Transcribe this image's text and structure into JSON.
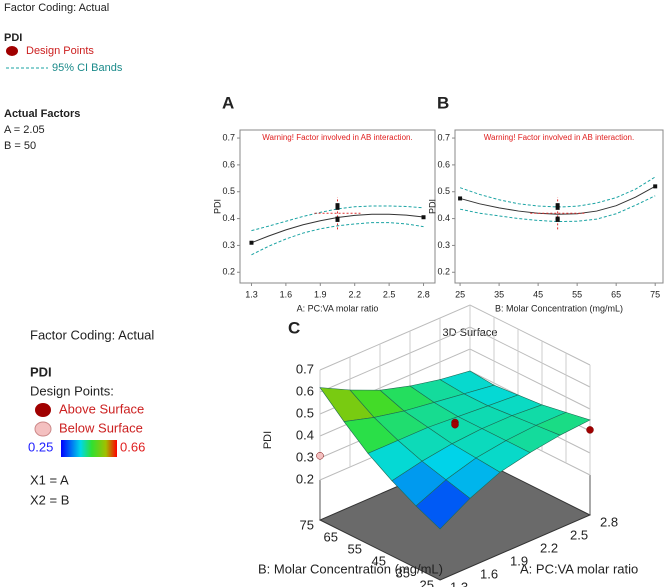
{
  "legend_top": {
    "factor_coding": "Factor Coding: Actual",
    "response": "PDI",
    "design_points": "Design Points",
    "ci_bands": "95% CI Bands",
    "actual_factors_title": "Actual Factors",
    "factors": [
      "A = 2.05",
      "B = 50"
    ]
  },
  "legend_bottom": {
    "factor_coding": "Factor Coding: Actual",
    "response": "PDI",
    "design_points": "Design Points:",
    "above": "Above Surface",
    "below": "Below Surface",
    "mapping": [
      "X1 = A",
      "X2 = B"
    ]
  },
  "chart_data": [
    {
      "type": "line",
      "panel": "A",
      "warning": "Warning! Factor involved in AB interaction.",
      "xlabel": "A: PC:VA molar ratio",
      "ylabel": "PDI",
      "xlim": [
        1.2,
        2.9
      ],
      "xticks": [
        1.3,
        1.6,
        1.9,
        2.2,
        2.5,
        2.8
      ],
      "ylim": [
        0.16,
        0.73
      ],
      "yticks": [
        0.2,
        0.3,
        0.4,
        0.5,
        0.6,
        0.7
      ],
      "x": [
        1.3,
        1.45,
        1.6,
        1.75,
        1.9,
        2.05,
        2.2,
        2.35,
        2.5,
        2.65,
        2.8
      ],
      "fit": {
        "color": "#333333",
        "values": [
          0.31,
          0.335,
          0.358,
          0.377,
          0.392,
          0.404,
          0.412,
          0.416,
          0.416,
          0.413,
          0.406
        ]
      },
      "ci_upper": {
        "color": "#1aa3a3",
        "values": [
          0.355,
          0.372,
          0.39,
          0.408,
          0.423,
          0.436,
          0.444,
          0.447,
          0.447,
          0.445,
          0.44
        ]
      },
      "ci_lower": {
        "color": "#1aa3a3",
        "values": [
          0.265,
          0.297,
          0.324,
          0.346,
          0.362,
          0.373,
          0.38,
          0.385,
          0.385,
          0.38,
          0.37
        ]
      },
      "points": {
        "color": "#111111",
        "x": [
          1.3,
          2.05,
          2.05,
          2.05,
          2.05,
          2.8
        ],
        "values": [
          0.31,
          0.45,
          0.44,
          0.4,
          0.395,
          0.405
        ]
      },
      "error_bar": {
        "color": "#e03030",
        "x": 2.05,
        "y": 0.42,
        "y_low": 0.36,
        "y_high": 0.48,
        "x_low": 1.85,
        "x_high": 2.25
      }
    },
    {
      "type": "line",
      "panel": "B",
      "warning": "Warning! Factor involved in AB interaction.",
      "xlabel": "B: Molar Concentration  (mg/mL)",
      "ylabel": "PDI",
      "xlim": [
        23.7,
        77
      ],
      "xticks": [
        25,
        35,
        45,
        55,
        65,
        75
      ],
      "ylim": [
        0.16,
        0.73
      ],
      "yticks": [
        0.2,
        0.3,
        0.4,
        0.5,
        0.6,
        0.7
      ],
      "x": [
        25,
        30,
        35,
        40,
        45,
        50,
        55,
        60,
        65,
        70,
        75
      ],
      "fit": {
        "color": "#333333",
        "values": [
          0.475,
          0.455,
          0.44,
          0.428,
          0.42,
          0.416,
          0.418,
          0.428,
          0.448,
          0.48,
          0.52
        ]
      },
      "ci_upper": {
        "color": "#1aa3a3",
        "values": [
          0.515,
          0.49,
          0.47,
          0.455,
          0.447,
          0.443,
          0.446,
          0.458,
          0.478,
          0.51,
          0.555
        ]
      },
      "ci_lower": {
        "color": "#1aa3a3",
        "values": [
          0.435,
          0.42,
          0.41,
          0.4,
          0.393,
          0.389,
          0.39,
          0.398,
          0.418,
          0.45,
          0.485
        ]
      },
      "points": {
        "color": "#111111",
        "x": [
          25,
          50,
          50,
          50,
          50,
          75
        ],
        "values": [
          0.475,
          0.45,
          0.44,
          0.4,
          0.395,
          0.52
        ]
      },
      "error_bar": {
        "color": "#e03030",
        "x": 50,
        "y": 0.42,
        "y_low": 0.36,
        "y_high": 0.48,
        "x_low": 43,
        "x_high": 57
      }
    },
    {
      "type": "surface",
      "panel": "C",
      "title": "3D Surface",
      "zlabel": "PDI",
      "xlabel": "A: PC:VA molar ratio",
      "ylabel": "B: Molar Concentration (mg/mL)",
      "x": [
        1.3,
        1.6,
        1.9,
        2.2,
        2.5,
        2.8
      ],
      "y": [
        25,
        35,
        45,
        55,
        65,
        75
      ],
      "z": [
        [
          0.25,
          0.33,
          0.39,
          0.42,
          0.44,
          0.45
        ],
        [
          0.3,
          0.36,
          0.4,
          0.42,
          0.43,
          0.43
        ],
        [
          0.36,
          0.39,
          0.41,
          0.42,
          0.42,
          0.41
        ],
        [
          0.43,
          0.43,
          0.43,
          0.42,
          0.41,
          0.4
        ],
        [
          0.52,
          0.48,
          0.45,
          0.43,
          0.41,
          0.39
        ],
        [
          0.62,
          0.55,
          0.49,
          0.45,
          0.42,
          0.4
        ]
      ],
      "xlim": [
        1.3,
        2.8
      ],
      "ylim": [
        25,
        75
      ],
      "zlim": [
        0.2,
        0.7
      ],
      "xticks": [
        1.3,
        1.6,
        1.9,
        2.2,
        2.5,
        2.8
      ],
      "yticks": [
        25,
        35,
        45,
        55,
        65,
        75
      ],
      "zticks": [
        0.2,
        0.3,
        0.4,
        0.5,
        0.6,
        0.7
      ],
      "color_range": [
        0.25,
        0.66
      ],
      "above_points": {
        "color": "#a00000",
        "x": [
          2.05,
          2.05,
          2.8
        ],
        "y": [
          50,
          50,
          25
        ],
        "z": [
          0.45,
          0.44,
          0.405
        ]
      },
      "below_points": {
        "color": "#f4c0c0",
        "x": [
          1.3
        ],
        "y": [
          75
        ],
        "z": [
          0.31
        ]
      }
    }
  ]
}
